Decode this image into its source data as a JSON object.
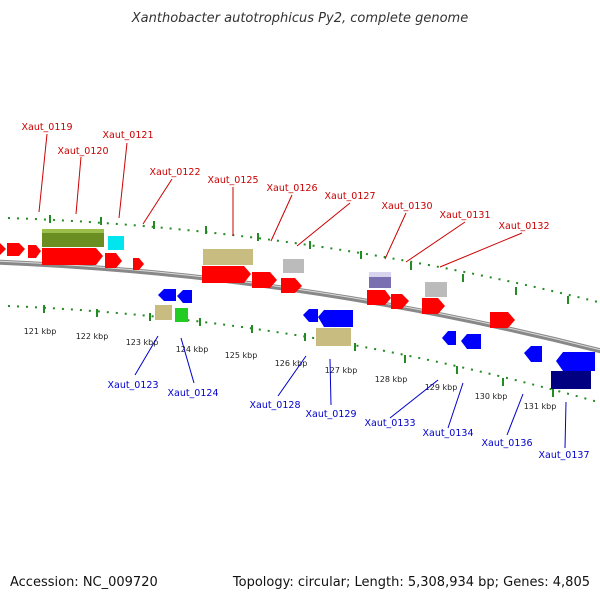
{
  "title": "Xanthobacter autotrophicus Py2, complete genome",
  "accession_text": "Accession: NC_009720",
  "topology_text": "Topology: circular; Length: 5,308,934 bp; Genes: 4,805",
  "scale_labels": [
    "121 kbp",
    "122 kbp",
    "123 kbp",
    "124 kbp",
    "125 kbp",
    "126 kbp",
    "127 kbp",
    "128 kbp",
    "129 kbp",
    "130 kbp",
    "131 kbp"
  ],
  "top_gene_labels": [
    "Xaut_0119",
    "Xaut_0120",
    "Xaut_0121",
    "Xaut_0122",
    "Xaut_0125",
    "Xaut_0126",
    "Xaut_0127",
    "Xaut_0130",
    "Xaut_0131",
    "Xaut_0132"
  ],
  "bottom_gene_labels": [
    "Xaut_0123",
    "Xaut_0124",
    "Xaut_0128",
    "Xaut_0129",
    "Xaut_0133",
    "Xaut_0134",
    "Xaut_0136",
    "Xaut_0137"
  ],
  "colors": {
    "forward_gene": "#ff0000",
    "reverse_gene": "#0000ff",
    "tick": "#228b22",
    "backbone": "#888888",
    "top_label": "#cc0000",
    "bottom_label": "#0000cc",
    "feature_olive": "#6b8e23",
    "feature_cyan": "#00e5ee",
    "feature_khaki": "#c8bc80",
    "feature_grey": "#bbbbbb",
    "feature_purple": "#7a6fb0",
    "feature_green": "#22cc22",
    "feature_navy": "#000080"
  }
}
